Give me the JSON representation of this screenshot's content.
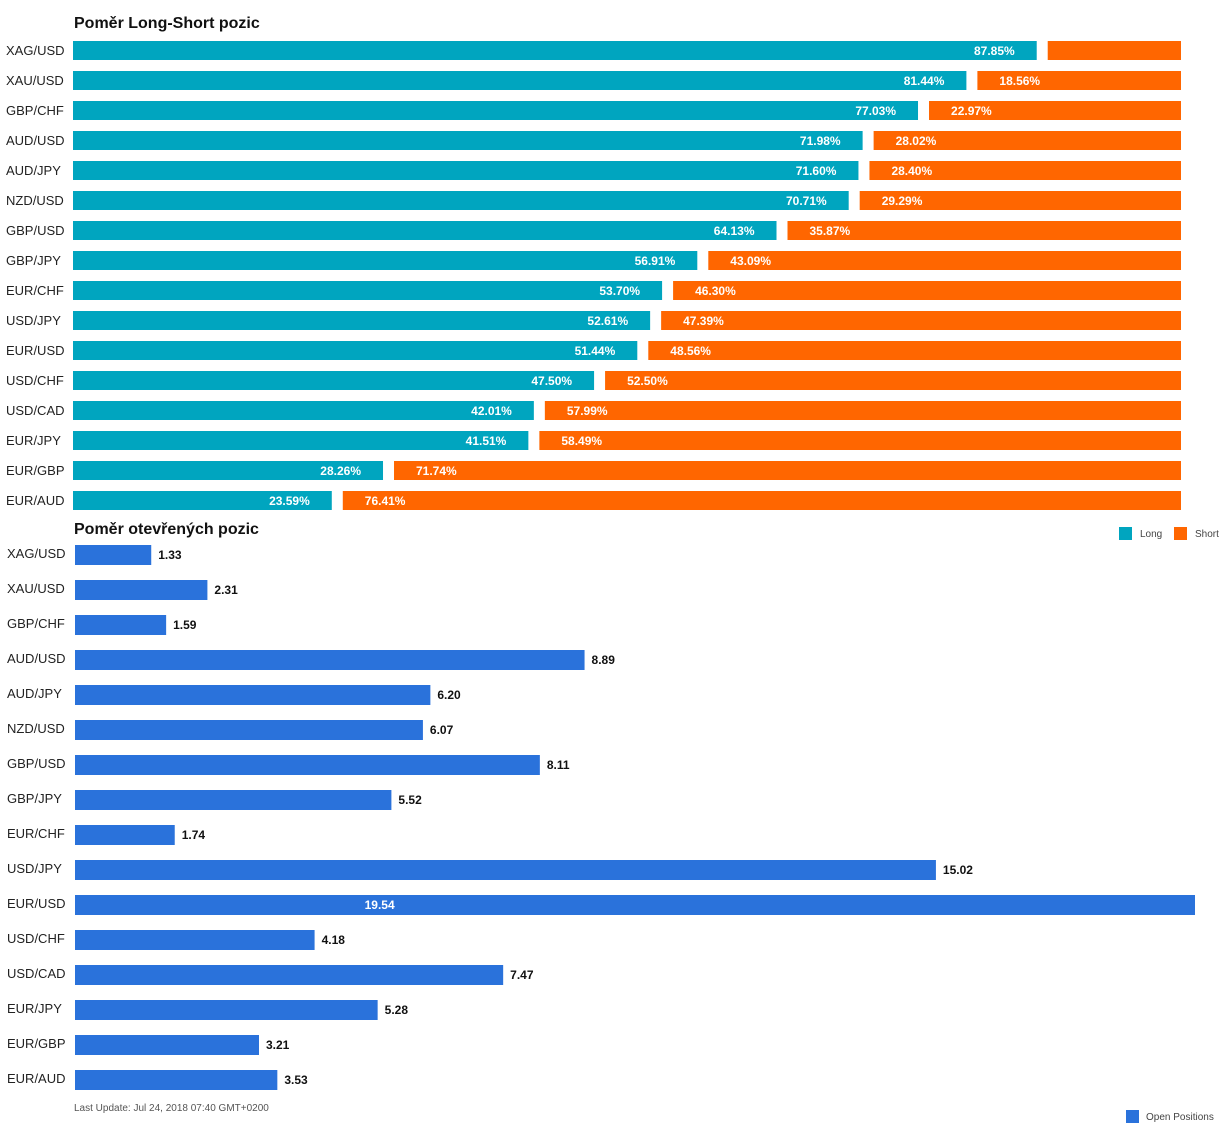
{
  "colors": {
    "long": "#00A5BF",
    "short": "#FF6600",
    "open": "#2A72DB"
  },
  "footer": {
    "last_update": "Last Update: Jul 24, 2018 07:40 GMT+0200"
  },
  "chart_data": [
    {
      "type": "bar",
      "orientation": "horizontal",
      "stacked": true,
      "title": "Poměr Long-Short pozic",
      "categories": [
        "XAG/USD",
        "XAU/USD",
        "GBP/CHF",
        "AUD/USD",
        "AUD/JPY",
        "NZD/USD",
        "GBP/USD",
        "GBP/JPY",
        "EUR/CHF",
        "USD/JPY",
        "EUR/USD",
        "USD/CHF",
        "USD/CAD",
        "EUR/JPY",
        "EUR/GBP",
        "EUR/AUD"
      ],
      "series": [
        {
          "name": "Long",
          "values": [
            87.85,
            81.44,
            77.03,
            71.98,
            71.6,
            70.71,
            64.13,
            56.91,
            53.7,
            52.61,
            51.44,
            47.5,
            42.01,
            41.51,
            28.26,
            23.59
          ],
          "labels": [
            "87.85%",
            "81.44%",
            "77.03%",
            "71.98%",
            "71.60%",
            "70.71%",
            "64.13%",
            "56.91%",
            "53.70%",
            "52.61%",
            "51.44%",
            "47.50%",
            "42.01%",
            "41.51%",
            "28.26%",
            "23.59%"
          ]
        },
        {
          "name": "Short",
          "values": [
            12.15,
            18.56,
            22.97,
            28.02,
            28.4,
            29.29,
            35.87,
            43.09,
            46.3,
            47.39,
            48.56,
            52.5,
            57.99,
            58.49,
            71.74,
            76.41
          ],
          "labels": [
            "",
            "18.56%",
            "22.97%",
            "28.02%",
            "28.40%",
            "29.29%",
            "35.87%",
            "43.09%",
            "46.30%",
            "47.39%",
            "48.56%",
            "52.50%",
            "57.99%",
            "58.49%",
            "71.74%",
            "76.41%"
          ]
        }
      ],
      "xlim": [
        0,
        100
      ],
      "grid": false,
      "legend": "bottom-right"
    },
    {
      "type": "bar",
      "orientation": "horizontal",
      "title": "Poměr otevřených pozic",
      "categories": [
        "XAG/USD",
        "XAU/USD",
        "GBP/CHF",
        "AUD/USD",
        "AUD/JPY",
        "NZD/USD",
        "GBP/USD",
        "GBP/JPY",
        "EUR/CHF",
        "USD/JPY",
        "EUR/USD",
        "USD/CHF",
        "USD/CAD",
        "EUR/JPY",
        "EUR/GBP",
        "EUR/AUD"
      ],
      "series": [
        {
          "name": "Open Positions",
          "values": [
            1.33,
            2.31,
            1.59,
            8.89,
            6.2,
            6.07,
            8.11,
            5.52,
            1.74,
            15.02,
            19.54,
            4.18,
            7.47,
            5.28,
            3.21,
            3.53
          ],
          "labels": [
            "1.33",
            "2.31",
            "1.59",
            "8.89",
            "6.20",
            "6.07",
            "8.11",
            "5.52",
            "1.74",
            "15.02",
            "19.54",
            "4.18",
            "7.47",
            "5.28",
            "3.21",
            "3.53"
          ]
        }
      ],
      "xlim": [
        0,
        19.54
      ],
      "grid": false,
      "legend": "bottom-right"
    }
  ]
}
